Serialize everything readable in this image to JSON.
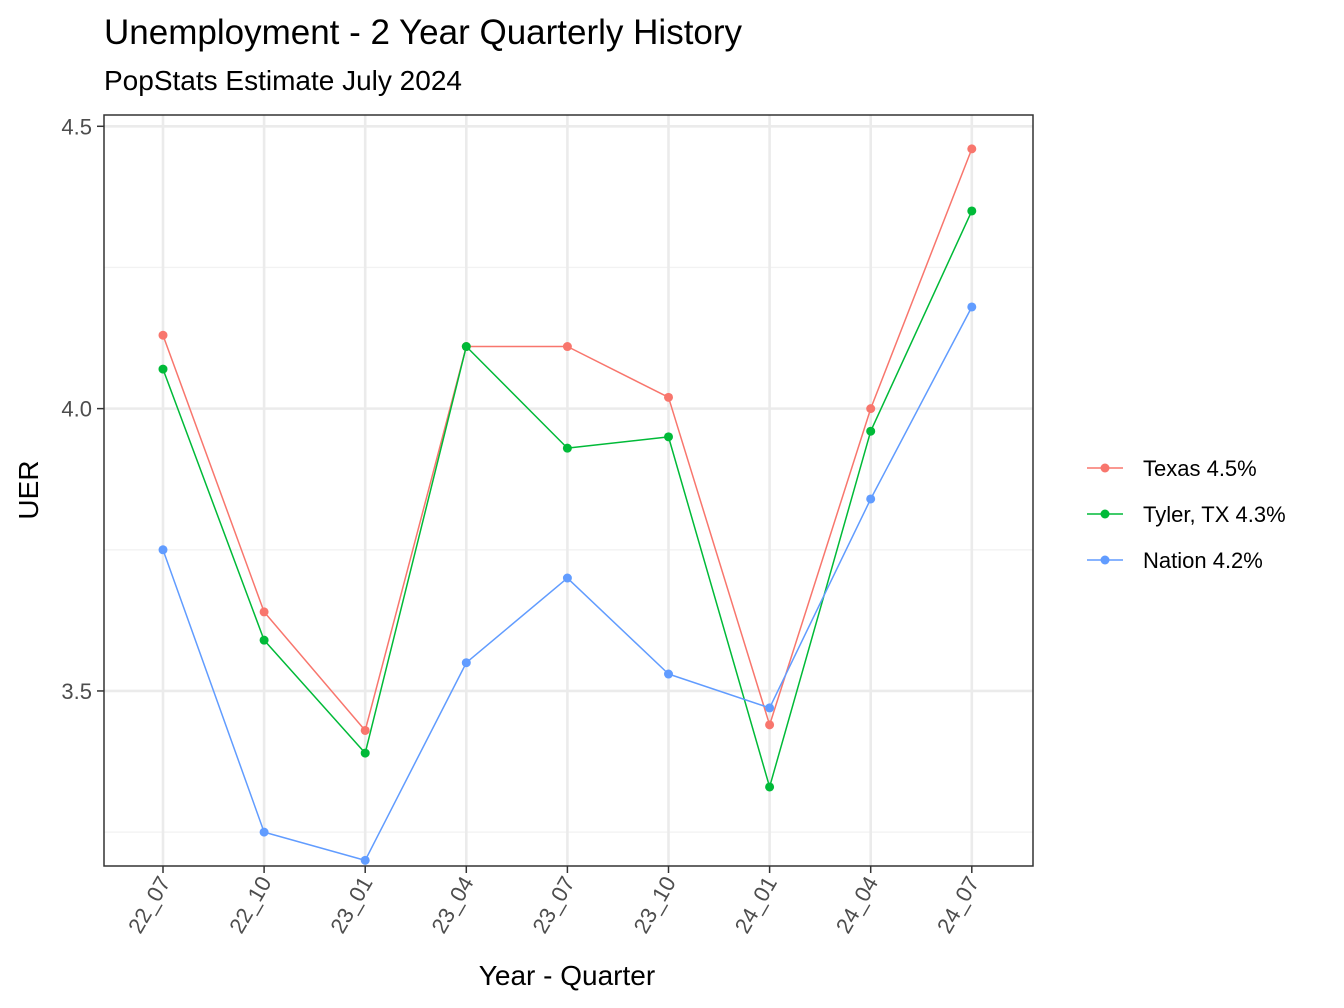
{
  "chart_data": {
    "type": "line",
    "title": "Unemployment - 2 Year Quarterly History",
    "subtitle": "PopStats Estimate July 2024",
    "xlabel": "Year - Quarter",
    "ylabel": "UER",
    "categories": [
      "22_07",
      "22_10",
      "23_01",
      "23_04",
      "23_07",
      "23_10",
      "24_01",
      "24_04",
      "24_07"
    ],
    "y_ticks": [
      "3.5",
      "4.0",
      "4.5"
    ],
    "y_tick_values": [
      3.5,
      4.0,
      4.5
    ],
    "ylim": [
      3.19,
      4.52
    ],
    "grid": true,
    "legend_position": "right",
    "series": [
      {
        "name": "Texas 4.5%",
        "color": "#F8766D",
        "values": [
          4.13,
          3.64,
          3.43,
          4.11,
          4.11,
          4.02,
          3.44,
          4.0,
          4.46
        ]
      },
      {
        "name": "Tyler, TX 4.3%",
        "color": "#00BA38",
        "values": [
          4.07,
          3.59,
          3.39,
          4.11,
          3.93,
          3.95,
          3.33,
          3.96,
          4.35
        ]
      },
      {
        "name": "Nation 4.2%",
        "color": "#619CFF",
        "values": [
          3.75,
          3.25,
          3.2,
          3.55,
          3.7,
          3.53,
          3.47,
          3.84,
          4.18
        ]
      }
    ]
  }
}
